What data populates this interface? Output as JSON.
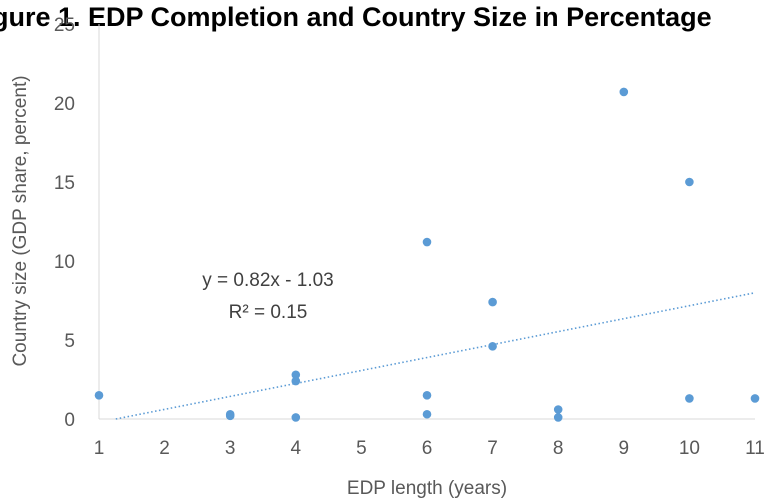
{
  "chart_data": {
    "type": "scatter",
    "title": "gure 1. EDP Completion and Country Size in Percentage",
    "xlabel": "EDP length (years)",
    "ylabel": "Country size (GDP share, percent)",
    "xlim": [
      1,
      11
    ],
    "ylim": [
      0,
      25
    ],
    "x_ticks": [
      "1",
      "2",
      "3",
      "4",
      "5",
      "6",
      "7",
      "8",
      "9",
      "10",
      "11"
    ],
    "y_ticks": [
      "0",
      "5",
      "10",
      "15",
      "20",
      "25"
    ],
    "grid": false,
    "legend": "none",
    "marker_color": "#5b9bd5",
    "points": [
      {
        "x": 1,
        "y": 1.5
      },
      {
        "x": 3,
        "y": 0.3
      },
      {
        "x": 3,
        "y": 0.2
      },
      {
        "x": 4,
        "y": 2.8
      },
      {
        "x": 4,
        "y": 2.4
      },
      {
        "x": 4,
        "y": 0.1
      },
      {
        "x": 6,
        "y": 11.2
      },
      {
        "x": 6,
        "y": 1.5
      },
      {
        "x": 6,
        "y": 0.3
      },
      {
        "x": 7,
        "y": 7.4
      },
      {
        "x": 7,
        "y": 4.6
      },
      {
        "x": 8,
        "y": 0.6
      },
      {
        "x": 8,
        "y": 0.1
      },
      {
        "x": 9,
        "y": 20.7
      },
      {
        "x": 10,
        "y": 15.0
      },
      {
        "x": 10,
        "y": 1.3
      },
      {
        "x": 11,
        "y": 1.3
      }
    ],
    "trendline": {
      "type": "linear",
      "style": "dotted",
      "slope": 0.82,
      "intercept": -1.03,
      "equation_label": "y = 0.82x - 1.03",
      "r2_label": "R² = 0.15"
    }
  }
}
